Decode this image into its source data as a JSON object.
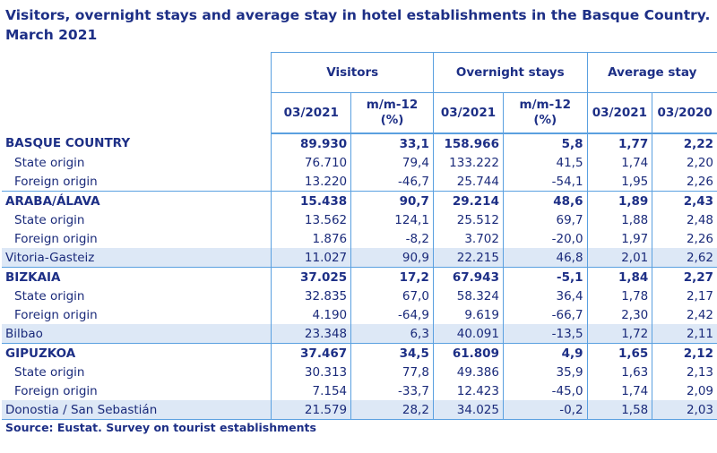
{
  "title_line1": "Visitors, overnight stays and average stay in hotel establishments in the Basque Country.",
  "title_line2": "March 2021",
  "groups": {
    "visitors": "Visitors",
    "overnight": "Overnight stays",
    "average": "Average stay"
  },
  "subheaders": {
    "v1": "03/2021",
    "v2a": "m/m-12",
    "v2b": "(%)",
    "o1": "03/2021",
    "o2a": "m/m-12",
    "o2b": "(%)",
    "a1": "03/2021",
    "a2": "03/2020"
  },
  "rows": [
    {
      "label": "BASQUE COUNTRY",
      "v": "89.930",
      "vp": "33,1",
      "o": "158.966",
      "op": "5,8",
      "a1": "1,77",
      "a2": "2,22"
    },
    {
      "label": "State origin",
      "v": "76.710",
      "vp": "79,4",
      "o": "133.222",
      "op": "41,5",
      "a1": "1,74",
      "a2": "2,20"
    },
    {
      "label": "Foreign origin",
      "v": "13.220",
      "vp": "-46,7",
      "o": "25.744",
      "op": "-54,1",
      "a1": "1,95",
      "a2": "2,26"
    },
    {
      "label": "ARABA/ÁLAVA",
      "v": "15.438",
      "vp": "90,7",
      "o": "29.214",
      "op": "48,6",
      "a1": "1,89",
      "a2": "2,43"
    },
    {
      "label": "State origin",
      "v": "13.562",
      "vp": "124,1",
      "o": "25.512",
      "op": "69,7",
      "a1": "1,88",
      "a2": "2,48"
    },
    {
      "label": "Foreign origin",
      "v": "1.876",
      "vp": "-8,2",
      "o": "3.702",
      "op": "-20,0",
      "a1": "1,97",
      "a2": "2,26"
    },
    {
      "label": "Vitoria-Gasteiz",
      "v": "11.027",
      "vp": "90,9",
      "o": "22.215",
      "op": "46,8",
      "a1": "2,01",
      "a2": "2,62"
    },
    {
      "label": "BIZKAIA",
      "v": "37.025",
      "vp": "17,2",
      "o": "67.943",
      "op": "-5,1",
      "a1": "1,84",
      "a2": "2,27"
    },
    {
      "label": "State origin",
      "v": "32.835",
      "vp": "67,0",
      "o": "58.324",
      "op": "36,4",
      "a1": "1,78",
      "a2": "2,17"
    },
    {
      "label": "Foreign origin",
      "v": "4.190",
      "vp": "-64,9",
      "o": "9.619",
      "op": "-66,7",
      "a1": "2,30",
      "a2": "2,42"
    },
    {
      "label": "Bilbao",
      "v": "23.348",
      "vp": "6,3",
      "o": "40.091",
      "op": "-13,5",
      "a1": "1,72",
      "a2": "2,11"
    },
    {
      "label": "GIPUZKOA",
      "v": "37.467",
      "vp": "34,5",
      "o": "61.809",
      "op": "4,9",
      "a1": "1,65",
      "a2": "2,12"
    },
    {
      "label": "State origin",
      "v": "30.313",
      "vp": "77,8",
      "o": "49.386",
      "op": "35,9",
      "a1": "1,63",
      "a2": "2,13"
    },
    {
      "label": "Foreign origin",
      "v": "7.154",
      "vp": "-33,7",
      "o": "12.423",
      "op": "-45,0",
      "a1": "1,74",
      "a2": "2,09"
    },
    {
      "label": "Donostia / San Sebastián",
      "v": "21.579",
      "vp": "28,2",
      "o": "34.025",
      "op": "-0,2",
      "a1": "1,58",
      "a2": "2,03"
    }
  ],
  "source": "Source: Eustat. Survey on tourist establishments"
}
